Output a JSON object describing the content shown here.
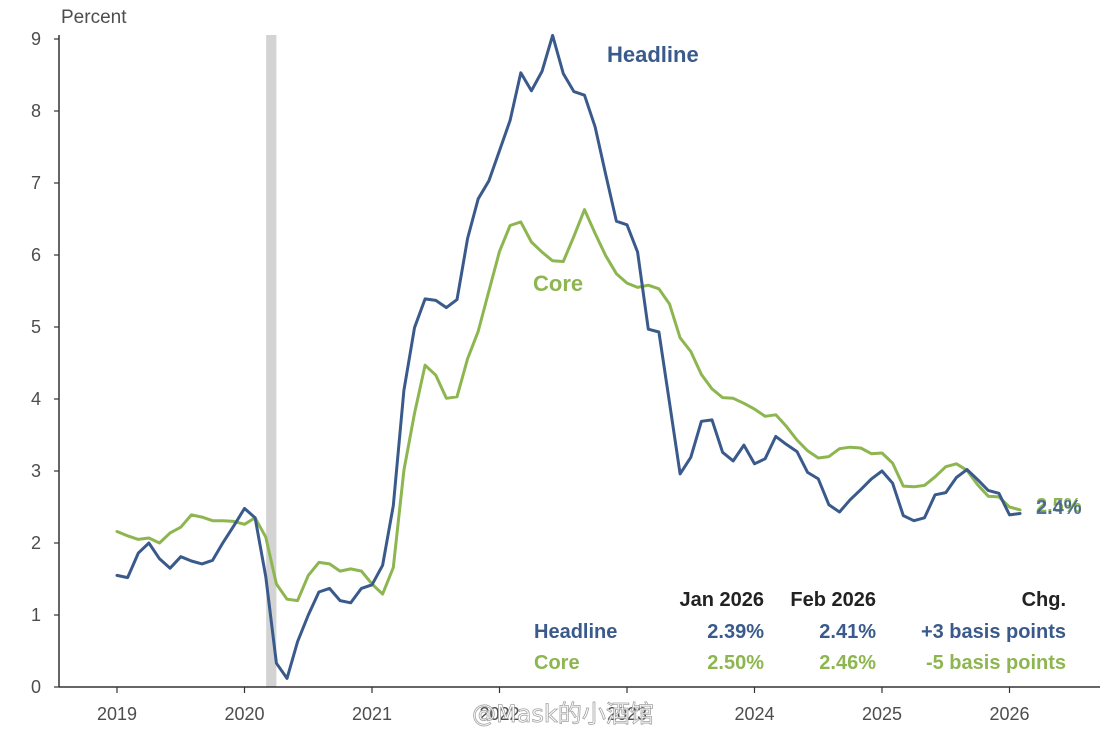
{
  "chart_data": {
    "type": "line",
    "ylabel": "Percent",
    "ylim": [
      0,
      9
    ],
    "yticks": [
      "0",
      "1",
      "2",
      "3",
      "4",
      "5",
      "6",
      "7",
      "8",
      "9"
    ],
    "xlabels": [
      {
        "label": "2019",
        "x": 2019.0
      },
      {
        "label": "2020",
        "x": 2020.0
      },
      {
        "label": "2021",
        "x": 2021.0
      },
      {
        "label": "2022",
        "x": 2022.0
      },
      {
        "label": "2023",
        "x": 2023.0
      },
      {
        "label": "2024",
        "x": 2024.0
      },
      {
        "label": "2025",
        "x": 2025.0
      },
      {
        "label": "2026",
        "x": 2026.0
      }
    ],
    "recession": {
      "start": 2020.17,
      "end": 2020.25
    },
    "colors": {
      "headline": "#3a5a8c",
      "core": "#8db650",
      "recession": "#d3d3d3",
      "axis": "#333333"
    },
    "series": [
      {
        "name": "Headline",
        "key": "headline",
        "start": 2019.0,
        "values": [
          1.55,
          1.52,
          1.86,
          2.0,
          1.78,
          1.65,
          1.81,
          1.75,
          1.71,
          1.76,
          2.01,
          2.24,
          2.48,
          2.35,
          1.53,
          0.33,
          0.12,
          0.63,
          1.0,
          1.32,
          1.37,
          1.2,
          1.17,
          1.37,
          1.42,
          1.69,
          2.52,
          4.12,
          4.99,
          5.39,
          5.37,
          5.27,
          5.38,
          6.23,
          6.78,
          7.03,
          7.45,
          7.87,
          8.53,
          8.28,
          8.55,
          9.05,
          8.52,
          8.27,
          8.22,
          7.78,
          7.12,
          6.47,
          6.42,
          6.04,
          4.97,
          4.93,
          3.95,
          2.96,
          3.19,
          3.69,
          3.71,
          3.26,
          3.14,
          3.36,
          3.1,
          3.17,
          3.48,
          3.37,
          3.27,
          2.98,
          2.89,
          2.53,
          2.43,
          2.6,
          2.74,
          2.89,
          3.0,
          2.83,
          2.38,
          2.31,
          2.35,
          2.67,
          2.7,
          2.91,
          3.02,
          2.88,
          2.73,
          2.69,
          2.39,
          2.41
        ]
      },
      {
        "name": "Core",
        "key": "core",
        "start": 2019.0,
        "values": [
          2.16,
          2.1,
          2.05,
          2.07,
          2.0,
          2.14,
          2.22,
          2.39,
          2.36,
          2.31,
          2.31,
          2.3,
          2.26,
          2.35,
          2.08,
          1.43,
          1.22,
          1.2,
          1.55,
          1.73,
          1.71,
          1.61,
          1.64,
          1.61,
          1.43,
          1.29,
          1.66,
          3.01,
          3.8,
          4.47,
          4.33,
          4.01,
          4.03,
          4.56,
          4.94,
          5.5,
          6.05,
          6.41,
          6.46,
          6.18,
          6.04,
          5.92,
          5.91,
          6.26,
          6.63,
          6.3,
          5.99,
          5.74,
          5.61,
          5.55,
          5.58,
          5.53,
          5.32,
          4.85,
          4.66,
          4.34,
          4.14,
          4.02,
          4.01,
          3.94,
          3.86,
          3.76,
          3.78,
          3.62,
          3.43,
          3.28,
          3.18,
          3.2,
          3.31,
          3.33,
          3.32,
          3.24,
          3.25,
          3.11,
          2.79,
          2.78,
          2.8,
          2.92,
          3.06,
          3.1,
          3.01,
          2.81,
          2.65,
          2.64,
          2.5,
          2.46
        ]
      }
    ],
    "series_labels": {
      "headline": "Headline",
      "core": "Core"
    },
    "end_labels": {
      "headline": "2.4%",
      "core": "2.5%"
    },
    "table": {
      "headers": [
        "Jan 2026",
        "Feb 2026",
        "Chg."
      ],
      "rows": [
        {
          "key": "headline",
          "name": "Headline",
          "values": [
            "2.39%",
            "2.41%",
            "+3 basis points"
          ]
        },
        {
          "key": "core",
          "name": "Core",
          "values": [
            "2.50%",
            "2.46%",
            "-5 basis points"
          ]
        }
      ]
    }
  },
  "watermark": "@Mask的小酒馆"
}
